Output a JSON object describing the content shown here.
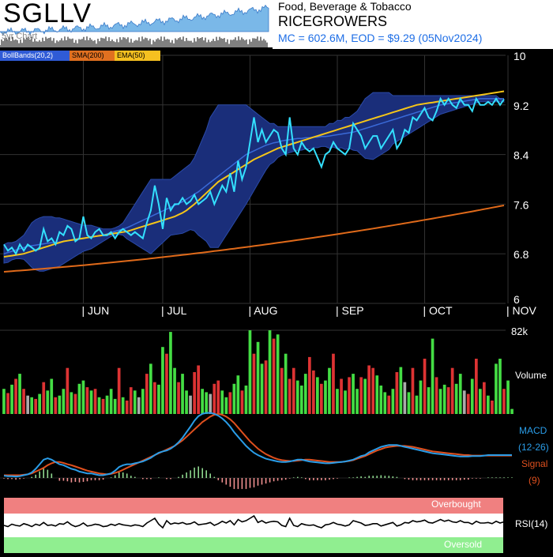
{
  "header": {
    "ticker": "SGLLV",
    "period_label": "5yr Chart",
    "sector": "Food, Beverage & Tobacco",
    "company": "RICEGROWERS",
    "market_cap_line": "MC = 602.6M, EOD = $9.29 (05Nov2024)"
  },
  "legend": {
    "bollinger": "BollBands(20,2)",
    "sma": "SMA(200)",
    "ema": "EMA(50)"
  },
  "colors": {
    "price": "#33e0ff",
    "band_fill": "#1a2e7a",
    "bb_mid": "#3a6ad8",
    "sma200": "#e06a1a",
    "ema50": "#f5c518",
    "vol_up": "#44dd44",
    "vol_down": "#dd3333",
    "vol_flat": "#aaaaaa",
    "macd": "#2a9de8",
    "signal": "#e0501e",
    "overbought": "#f08080",
    "oversold": "#90ee90"
  },
  "volume_panel": {
    "max_label": "82k",
    "label": "Volume"
  },
  "macd_panel": {
    "macd_label": "MACD",
    "params": "(12-26)",
    "signal_label": "Signal",
    "signal_param": "(9)"
  },
  "rsi_panel": {
    "overbought": "Overbought",
    "oversold": "Oversold",
    "label": "RSI(14)"
  },
  "chart_data": {
    "type": "line",
    "ylim": [
      6,
      10
    ],
    "yticks": [
      "10",
      "9.2",
      "8.4",
      "7.6",
      "6.8",
      "6"
    ],
    "months": [
      "JUN",
      "JUL",
      "AUG",
      "SEP",
      "OCT",
      "NOV"
    ],
    "price": [
      6.95,
      6.85,
      6.9,
      6.8,
      6.95,
      6.85,
      6.95,
      6.9,
      6.85,
      6.9,
      7.2,
      7.0,
      7.05,
      6.95,
      7.15,
      7.1,
      7.25,
      7.2,
      7.0,
      7.05,
      7.4,
      7.1,
      7.05,
      7.15,
      7.2,
      7.1,
      7.1,
      7.15,
      7.05,
      7.15,
      7.2,
      7.15,
      7.1,
      7.15,
      7.1,
      7.05,
      7.3,
      7.5,
      7.9,
      7.6,
      7.2,
      7.7,
      7.5,
      7.6,
      7.6,
      7.7,
      7.6,
      7.65,
      7.75,
      7.6,
      7.65,
      7.7,
      7.8,
      7.6,
      7.75,
      7.9,
      7.8,
      8.1,
      7.8,
      8.3,
      8.0,
      8.2,
      8.6,
      9.0,
      8.6,
      8.8,
      8.6,
      8.7,
      8.8,
      8.75,
      8.5,
      8.4,
      9.0,
      8.5,
      8.4,
      8.6,
      8.5,
      8.45,
      8.5,
      8.35,
      8.2,
      8.4,
      8.45,
      8.6,
      8.5,
      8.45,
      8.4,
      8.5,
      8.9,
      8.8,
      8.7,
      8.5,
      8.6,
      8.7,
      8.7,
      8.5,
      8.6,
      8.7,
      8.8,
      8.5,
      8.6,
      8.8,
      8.75,
      9.0,
      8.95,
      9.05,
      9.15,
      9.0,
      8.95,
      9.1,
      9.3,
      9.2,
      9.3,
      9.2,
      9.15,
      9.3,
      9.2,
      9.2,
      9.1,
      9.3,
      9.2,
      9.2,
      9.25,
      9.2,
      9.3,
      9.2,
      9.29
    ],
    "bb_upper": [
      6.95,
      6.98,
      6.98,
      7.0,
      7.05,
      7.1,
      7.2,
      7.3,
      7.35,
      7.38,
      7.4,
      7.4,
      7.4,
      7.38,
      7.38,
      7.36,
      7.34,
      7.32,
      7.3,
      7.28,
      7.26,
      7.26,
      7.26,
      7.24,
      7.22,
      7.2,
      7.2,
      7.2,
      7.22,
      7.25,
      7.3,
      7.4,
      7.5,
      7.6,
      7.7,
      7.8,
      7.9,
      8.0,
      8.0,
      8.0,
      8.0,
      8.0,
      8.0,
      8.05,
      8.1,
      8.15,
      8.2,
      8.25,
      8.35,
      8.5,
      8.65,
      8.8,
      9.0,
      9.1,
      9.2,
      9.2,
      9.2,
      9.2,
      9.2,
      9.2,
      9.2,
      9.2,
      9.15,
      9.1,
      9.05,
      9.0,
      8.95,
      8.9,
      8.9,
      8.85,
      8.85,
      8.85,
      8.85,
      8.85,
      8.85,
      8.85,
      8.85,
      8.85,
      8.85,
      8.85,
      8.85,
      8.85,
      8.9,
      8.9,
      8.95,
      8.95,
      9.0,
      9.0,
      9.05,
      9.1,
      9.2,
      9.3,
      9.35,
      9.4,
      9.4,
      9.4,
      9.4,
      9.4,
      9.35,
      9.35,
      9.35,
      9.35,
      9.35,
      9.35,
      9.35,
      9.35,
      9.35,
      9.35,
      9.35,
      9.35,
      9.35,
      9.35,
      9.35,
      9.35,
      9.35,
      9.35,
      9.35,
      9.35,
      9.35,
      9.35,
      9.35,
      9.35,
      9.35,
      9.35,
      9.35
    ],
    "bb_middle": [
      6.8,
      6.82,
      6.84,
      6.86,
      6.88,
      6.9,
      6.92,
      6.93,
      6.94,
      6.95,
      6.96,
      6.97,
      6.98,
      6.98,
      6.99,
      7.0,
      7.01,
      7.02,
      7.03,
      7.04,
      7.05,
      7.06,
      7.07,
      7.08,
      7.09,
      7.1,
      7.12,
      7.14,
      7.16,
      7.18,
      7.2,
      7.22,
      7.25,
      7.28,
      7.31,
      7.34,
      7.37,
      7.4,
      7.43,
      7.46,
      7.49,
      7.52,
      7.55,
      7.58,
      7.61,
      7.64,
      7.68,
      7.72,
      7.76,
      7.8,
      7.85,
      7.9,
      7.95,
      8.0,
      8.05,
      8.1,
      8.15,
      8.2,
      8.25,
      8.3,
      8.35,
      8.4,
      8.43,
      8.46,
      8.49,
      8.52,
      8.55,
      8.57,
      8.59,
      8.6,
      8.62,
      8.63,
      8.64,
      8.65,
      8.66,
      8.66,
      8.67,
      8.67,
      8.68,
      8.68,
      8.69,
      8.69,
      8.7,
      8.71,
      8.72,
      8.73,
      8.74,
      8.75,
      8.76,
      8.78,
      8.8,
      8.82,
      8.84,
      8.86,
      8.88,
      8.9,
      8.92,
      8.94,
      8.96,
      8.98,
      9.0,
      9.02,
      9.04,
      9.06,
      9.08,
      9.1,
      9.12,
      9.14,
      9.16,
      9.18,
      9.2,
      9.21,
      9.22,
      9.23,
      9.24,
      9.25,
      9.26,
      9.27,
      9.28,
      9.29,
      9.3,
      9.3,
      9.3,
      9.3,
      9.3,
      9.3,
      9.3
    ],
    "bb_lower": [
      6.65,
      6.66,
      6.7,
      6.72,
      6.72,
      6.71,
      6.65,
      6.58,
      6.54,
      6.52,
      6.52,
      6.54,
      6.56,
      6.58,
      6.6,
      6.64,
      6.68,
      6.72,
      6.76,
      6.8,
      6.84,
      6.86,
      6.88,
      6.92,
      6.96,
      7.0,
      7.04,
      7.08,
      7.1,
      7.11,
      7.1,
      7.04,
      7.0,
      6.96,
      6.92,
      6.88,
      6.84,
      6.8,
      6.86,
      6.92,
      6.98,
      7.04,
      7.1,
      7.11,
      7.12,
      7.13,
      7.16,
      7.19,
      7.17,
      7.1,
      7.05,
      7.0,
      6.9,
      6.9,
      6.9,
      7.0,
      7.1,
      7.2,
      7.3,
      7.4,
      7.5,
      7.6,
      7.71,
      7.82,
      7.93,
      8.04,
      8.15,
      8.24,
      8.28,
      8.35,
      8.39,
      8.41,
      8.43,
      8.45,
      8.47,
      8.47,
      8.49,
      8.49,
      8.51,
      8.51,
      8.53,
      8.53,
      8.5,
      8.52,
      8.49,
      8.51,
      8.48,
      8.5,
      8.47,
      8.46,
      8.4,
      8.34,
      8.33,
      8.32,
      8.36,
      8.4,
      8.44,
      8.48,
      8.57,
      8.61,
      8.65,
      8.69,
      8.73,
      8.77,
      8.81,
      8.85,
      8.89,
      8.93,
      8.97,
      9.01,
      9.05,
      9.07,
      9.09,
      9.11,
      9.13,
      9.15,
      9.17,
      9.19,
      9.21,
      9.23,
      9.25,
      9.25,
      9.25,
      9.25,
      9.25,
      9.25,
      9.25
    ],
    "ema50": [
      6.75,
      6.76,
      6.77,
      6.78,
      6.79,
      6.8,
      6.82,
      6.84,
      6.86,
      6.88,
      6.9,
      6.92,
      6.94,
      6.96,
      6.98,
      7.0,
      7.01,
      7.02,
      7.03,
      7.04,
      7.05,
      7.06,
      7.07,
      7.08,
      7.09,
      7.1,
      7.11,
      7.12,
      7.13,
      7.14,
      7.15,
      7.16,
      7.18,
      7.2,
      7.22,
      7.24,
      7.26,
      7.28,
      7.3,
      7.32,
      7.34,
      7.36,
      7.38,
      7.4,
      7.43,
      7.46,
      7.5,
      7.55,
      7.6,
      7.66,
      7.72,
      7.78,
      7.84,
      7.9,
      7.96,
      8.0,
      8.04,
      8.08,
      8.12,
      8.16,
      8.2,
      8.24,
      8.28,
      8.32,
      8.35,
      8.38,
      8.41,
      8.44,
      8.47,
      8.5,
      8.52,
      8.54,
      8.56,
      8.58,
      8.6,
      8.62,
      8.64,
      8.66,
      8.68,
      8.7,
      8.72,
      8.74,
      8.76,
      8.78,
      8.8,
      8.82,
      8.84,
      8.86,
      8.88,
      8.9,
      8.92,
      8.94,
      8.96,
      8.98,
      9.0,
      9.02,
      9.04,
      9.06,
      9.08,
      9.1,
      9.12,
      9.14,
      9.16,
      9.18,
      9.2,
      9.21,
      9.22,
      9.23,
      9.24,
      9.25,
      9.26,
      9.27,
      9.28,
      9.29,
      9.3,
      9.31,
      9.32,
      9.33,
      9.34,
      9.35,
      9.36,
      9.37,
      9.38,
      9.39,
      9.4,
      9.41,
      9.42
    ],
    "sma200_range": [
      6.51,
      7.58
    ],
    "volume": [
      30,
      25,
      35,
      42,
      48,
      30,
      22,
      20,
      18,
      24,
      38,
      28,
      42,
      20,
      22,
      30,
      55,
      26,
      24,
      36,
      40,
      32,
      28,
      30,
      20,
      18,
      22,
      30,
      18,
      55,
      20,
      16,
      32,
      28,
      20,
      30,
      48,
      60,
      38,
      35,
      80,
      72,
      98,
      55,
      38,
      48,
      28,
      22,
      50,
      58,
      30,
      26,
      24,
      36,
      40,
      28,
      20,
      26,
      36,
      46,
      28,
      34,
      100,
      72,
      86,
      60,
      64,
      100,
      90,
      95,
      55,
      72,
      42,
      55,
      40,
      34,
      48,
      68,
      52,
      44,
      36,
      40,
      55,
      72,
      30,
      42,
      28,
      44,
      48,
      30,
      44,
      42,
      58,
      55,
      46,
      34,
      26,
      22,
      30,
      50,
      56,
      38,
      26,
      55,
      22,
      40,
      66,
      32,
      90,
      44,
      30,
      35,
      32,
      55,
      36,
      48,
      28,
      24,
      42,
      66,
      30,
      38,
      22,
      16,
      60,
      66,
      30,
      40,
      6
    ],
    "volume_colors": [
      "u",
      "d",
      "u",
      "d",
      "u",
      "d",
      "f",
      "u",
      "d",
      "u",
      "d",
      "u",
      "u",
      "d",
      "u",
      "u",
      "d",
      "u",
      "d",
      "u",
      "u",
      "d",
      "u",
      "d",
      "u",
      "d",
      "u",
      "u",
      "u",
      "d",
      "u",
      "d",
      "d",
      "u",
      "f",
      "u",
      "d",
      "u",
      "d",
      "u",
      "u",
      "d",
      "u",
      "u",
      "d",
      "u",
      "u",
      "f",
      "d",
      "d",
      "u",
      "u",
      "f",
      "d",
      "d",
      "u",
      "u",
      "d",
      "u",
      "u",
      "d",
      "u",
      "u",
      "d",
      "u",
      "u",
      "d",
      "u",
      "d",
      "u",
      "d",
      "u",
      "d",
      "d",
      "u",
      "u",
      "u",
      "d",
      "d",
      "u",
      "d",
      "u",
      "u",
      "d",
      "u",
      "d",
      "u",
      "d",
      "u",
      "u",
      "d",
      "u",
      "d",
      "d",
      "u",
      "u",
      "u",
      "d",
      "u",
      "d",
      "u",
      "f",
      "u",
      "d",
      "u",
      "u",
      "d",
      "u",
      "u",
      "d",
      "u",
      "u",
      "d",
      "d",
      "u",
      "u",
      "f",
      "d",
      "u",
      "d",
      "u",
      "d",
      "u",
      "d",
      "u",
      "u",
      "d",
      "u",
      "u"
    ],
    "macd": [
      5,
      4,
      4,
      3,
      4,
      6,
      8,
      12,
      20,
      30,
      40,
      43,
      40,
      35,
      30,
      28,
      24,
      20,
      18,
      14,
      12,
      10,
      10,
      8,
      6,
      6,
      8,
      10,
      16,
      24,
      28,
      30,
      30,
      32,
      34,
      36,
      40,
      44,
      50,
      55,
      58,
      60,
      64,
      70,
      78,
      88,
      100,
      112,
      125,
      135,
      140,
      142,
      142,
      140,
      136,
      130,
      122,
      112,
      100,
      90,
      80,
      70,
      62,
      55,
      50,
      46,
      42,
      40,
      38,
      36,
      35,
      35,
      36,
      38,
      40,
      40,
      38,
      36,
      35,
      34,
      33,
      32,
      32,
      33,
      34,
      35,
      36,
      38,
      40,
      44,
      48,
      50,
      56,
      60,
      64,
      68,
      70,
      72,
      72,
      72,
      70,
      68,
      66,
      64,
      62,
      60,
      58,
      56,
      54,
      53,
      52,
      51,
      50,
      49,
      48,
      47,
      47,
      47,
      48,
      48,
      48,
      49,
      50,
      50,
      50,
      50,
      50,
      50,
      50
    ],
    "signal": [
      6,
      6,
      6,
      6,
      6,
      7,
      8,
      10,
      14,
      18,
      22,
      28,
      32,
      35,
      35,
      33,
      30,
      28,
      25,
      22,
      19,
      16,
      14,
      12,
      10,
      9,
      8,
      9,
      11,
      14,
      18,
      22,
      26,
      30,
      34,
      38,
      42,
      46,
      50,
      54,
      58,
      62,
      66,
      70,
      76,
      82,
      90,
      98,
      106,
      114,
      122,
      128,
      134,
      138,
      140,
      138,
      134,
      128,
      120,
      110,
      100,
      90,
      80,
      72,
      64,
      58,
      52,
      48,
      44,
      41,
      39,
      38,
      37,
      37,
      38,
      39,
      40,
      40,
      39,
      38,
      37,
      36,
      35,
      35,
      35,
      35,
      36,
      37,
      39,
      42,
      45,
      48,
      52,
      56,
      60,
      63,
      66,
      68,
      69,
      70,
      70,
      70,
      69,
      68,
      66,
      64,
      62,
      60,
      58,
      57,
      56,
      55,
      54,
      53,
      52,
      51,
      50,
      50,
      49,
      49,
      49,
      49,
      49,
      49,
      49,
      49,
      49,
      49,
      49
    ],
    "rsi": [
      50,
      48,
      52,
      50,
      49,
      53,
      51,
      48,
      52,
      50,
      55,
      50,
      51,
      49,
      53,
      52,
      56,
      51,
      48,
      50,
      54,
      49,
      50,
      52,
      51,
      48,
      49,
      52,
      50,
      53,
      51,
      50,
      49,
      51,
      50,
      48,
      54,
      58,
      62,
      52,
      46,
      58,
      52,
      54,
      53,
      55,
      52,
      53,
      56,
      51,
      52,
      53,
      55,
      50,
      53,
      57,
      54,
      58,
      51,
      60,
      56,
      58,
      62,
      66,
      55,
      58,
      54,
      56,
      57,
      56,
      50,
      48,
      62,
      50,
      48,
      53,
      51,
      50,
      51,
      48,
      46,
      51,
      52,
      55,
      52,
      51,
      49,
      51,
      58,
      56,
      54,
      50,
      51,
      53,
      53,
      49,
      51,
      53,
      55,
      49,
      51,
      55,
      54,
      58,
      56,
      57,
      59,
      55,
      54,
      57,
      60,
      57,
      59,
      56,
      55,
      58,
      55,
      55,
      52,
      57,
      54,
      54,
      55,
      53,
      57,
      54,
      56
    ]
  }
}
